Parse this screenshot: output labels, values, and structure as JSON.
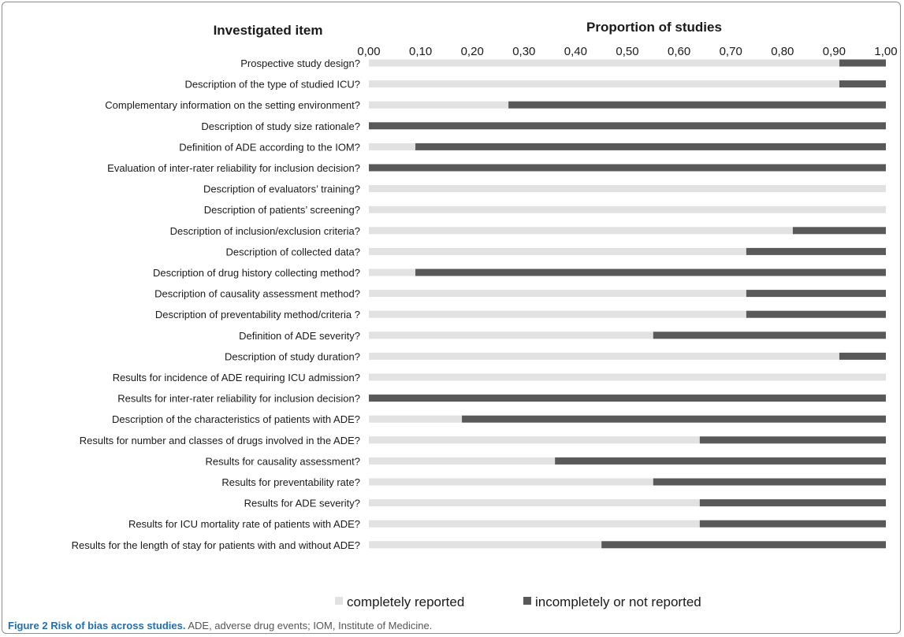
{
  "figure": {
    "label": "Figure 2",
    "title": "Risk of bias across studies.",
    "caption": "ADE, adverse drug events; IOM, Institute of Medicine."
  },
  "colors": {
    "completely_reported": "#e2e2e2",
    "incompletely_reported": "#595959",
    "frame": "#8c8c8c",
    "caption_label": "#1f6fb2"
  },
  "chart_data": {
    "type": "bar",
    "orientation": "horizontal",
    "stacked": true,
    "left_header": "Investigated item",
    "top_header": "Proportion of studies",
    "xlim": [
      0,
      1
    ],
    "x_ticks": [
      "0,00",
      "0,10",
      "0,20",
      "0,30",
      "0,40",
      "0,50",
      "0,60",
      "0,70",
      "0,80",
      "0,90",
      "1,00"
    ],
    "grid": false,
    "legend_position": "bottom-center",
    "categories": [
      "Prospective study design?",
      "Description of the type of studied ICU?",
      "Complementary information on the setting environment?",
      "Description of study size rationale?",
      "Definition of ADE according to the IOM?",
      "Evaluation of inter-rater reliability for inclusion decision?",
      "Description of evaluators’ training?",
      "Description of patients’ screening?",
      "Description of inclusion/exclusion criteria?",
      "Description of collected data?",
      "Description of drug history collecting method?",
      "Description of causality assessment method?",
      "Description of preventability method/criteria ?",
      "Definition of ADE severity?",
      "Description of study duration?",
      "Results for incidence of ADE requiring ICU admission?",
      "Results for inter-rater reliability for inclusion decision?",
      "Description of the characteristics of patients with ADE?",
      "Results for number and classes of drugs  involved in the ADE?",
      "Results for causality assessment?",
      "Results for preventability rate?",
      "Results for ADE severity?",
      "Results for ICU mortality rate of patients with ADE?",
      "Results for the length of stay for patients with and without ADE?"
    ],
    "series": [
      {
        "name": "completely reported",
        "values": [
          0.91,
          0.91,
          0.27,
          0.0,
          0.09,
          0.0,
          1.0,
          1.0,
          0.82,
          0.73,
          0.09,
          0.73,
          0.73,
          0.55,
          0.91,
          1.0,
          0.0,
          0.18,
          0.64,
          0.36,
          0.55,
          0.64,
          0.64,
          0.45
        ]
      },
      {
        "name": "incompletely or not reported",
        "values": [
          0.09,
          0.09,
          0.73,
          1.0,
          0.91,
          1.0,
          0.0,
          0.0,
          0.18,
          0.27,
          0.91,
          0.27,
          0.27,
          0.45,
          0.09,
          0.0,
          1.0,
          0.82,
          0.36,
          0.64,
          0.45,
          0.36,
          0.36,
          0.55
        ]
      }
    ]
  }
}
